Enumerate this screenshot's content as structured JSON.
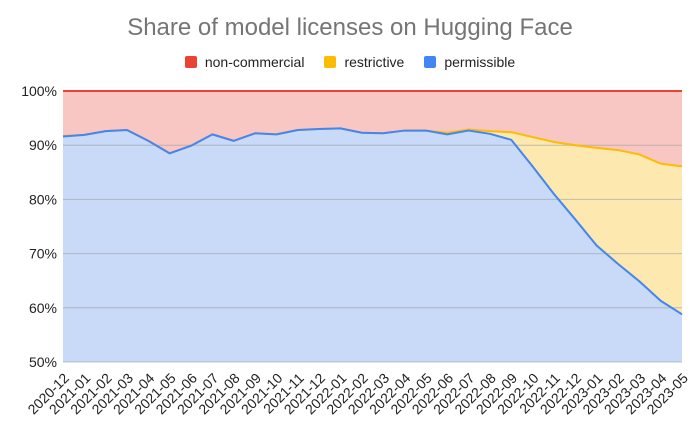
{
  "chart_data": {
    "type": "area",
    "title": "Share of model licenses on Hugging Face",
    "xlabel": "",
    "ylabel": "",
    "ylim": [
      50,
      100
    ],
    "y_unit": "%",
    "y_ticks": [
      50,
      60,
      70,
      80,
      90,
      100
    ],
    "y_tick_labels": [
      "50%",
      "60%",
      "70%",
      "80%",
      "90%",
      "100%"
    ],
    "grid": true,
    "legend_position": "top",
    "stacked": true,
    "categories": [
      "2020-12",
      "2021-01",
      "2021-02",
      "2021-03",
      "2021-04",
      "2021-05",
      "2021-06",
      "2021-07",
      "2021-08",
      "2021-09",
      "2021-10",
      "2021-11",
      "2021-12",
      "2022-01",
      "2022-02",
      "2022-03",
      "2022-04",
      "2022-05",
      "2022-06",
      "2022-07",
      "2022-08",
      "2022-09",
      "2022-10",
      "2022-11",
      "2022-12",
      "2023-01",
      "2023-02",
      "2023-03",
      "2023-04",
      "2023-05"
    ],
    "series": [
      {
        "name": "non-commercial",
        "color": "#ea4335",
        "cumulative_top": [
          100,
          100,
          100,
          100,
          100,
          100,
          100,
          100,
          100,
          100,
          100,
          100,
          100,
          100,
          100,
          100,
          100,
          100,
          100,
          100,
          100,
          100,
          100,
          100,
          100,
          100,
          100,
          100,
          100,
          100
        ]
      },
      {
        "name": "restrictive",
        "color": "#fbbc04",
        "cumulative_top": [
          91.7,
          91.9,
          92.6,
          92.8,
          90.8,
          88.5,
          89.9,
          92.0,
          90.8,
          92.2,
          92.0,
          92.8,
          93.0,
          93.1,
          92.3,
          92.2,
          92.7,
          92.7,
          92.3,
          92.9,
          92.6,
          92.4,
          91.5,
          90.6,
          90.0,
          89.5,
          89.1,
          88.3,
          86.6,
          86.1
        ]
      },
      {
        "name": "permissible",
        "color": "#4285f4",
        "cumulative_top": [
          91.6,
          91.9,
          92.6,
          92.8,
          90.8,
          88.5,
          89.9,
          92.0,
          90.8,
          92.2,
          92.0,
          92.8,
          93.0,
          93.1,
          92.3,
          92.2,
          92.7,
          92.7,
          92.0,
          92.7,
          92.1,
          91.0,
          86.1,
          81.0,
          76.3,
          71.5,
          68.1,
          64.9,
          61.3,
          58.8
        ]
      }
    ]
  }
}
